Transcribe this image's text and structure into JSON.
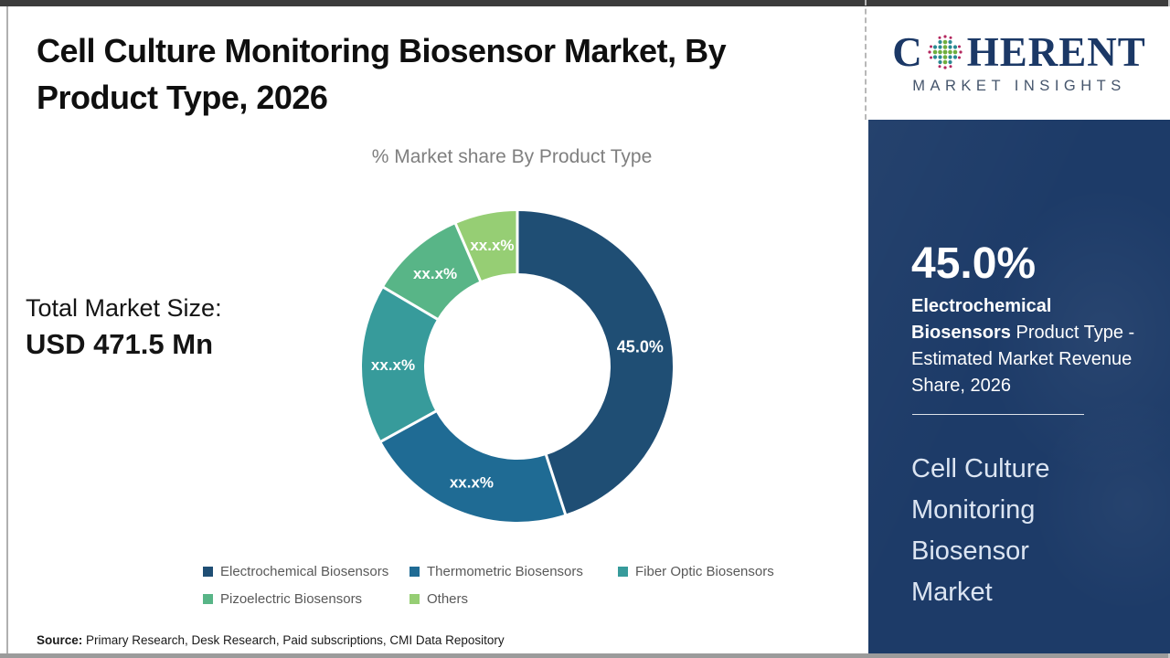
{
  "header": {
    "title_line1": "Cell Culture Monitoring Biosensor Market, By",
    "title_line2": "Product Type, 2026"
  },
  "main": {
    "chart_subtitle": "% Market share By Product Type",
    "total_market_label": "Total Market Size:",
    "total_market_value": "USD 471.5 Mn",
    "source_label": "Source:",
    "source_text": " Primary Research, Desk Research, Paid subscriptions, CMI Data Repository"
  },
  "chart_data": {
    "type": "pie",
    "subtype": "donut",
    "title": "% Market share By Product Type",
    "categories": [
      "Electrochemical Biosensors",
      "Thermometric Biosensors",
      "Fiber Optic Biosensors",
      "Pizoelectric Biosensors",
      "Others"
    ],
    "values": [
      45.0,
      22.0,
      16.5,
      10.0,
      6.5
    ],
    "value_labels": [
      "45.0%",
      "xx.x%",
      "xx.x%",
      "xx.x%",
      "xx.x%"
    ],
    "colors": [
      "#1f4e74",
      "#1f6b94",
      "#379b9b",
      "#58b587",
      "#96ce74"
    ],
    "legend_position": "bottom",
    "start_angle_deg": 0,
    "units": "% market share"
  },
  "sidebar": {
    "logo": {
      "word_start": "C",
      "word_end": "HERENT",
      "tagline": "MARKET INSIGHTS"
    },
    "highlight": {
      "value": "45.0%",
      "bold_text": "Electrochemical Biosensors",
      "rest_text": " Product Type - Estimated Market Revenue Share, 2026"
    },
    "market_name": "Cell Culture Monitoring Biosensor Market",
    "panel_color": "#1d3b68"
  }
}
